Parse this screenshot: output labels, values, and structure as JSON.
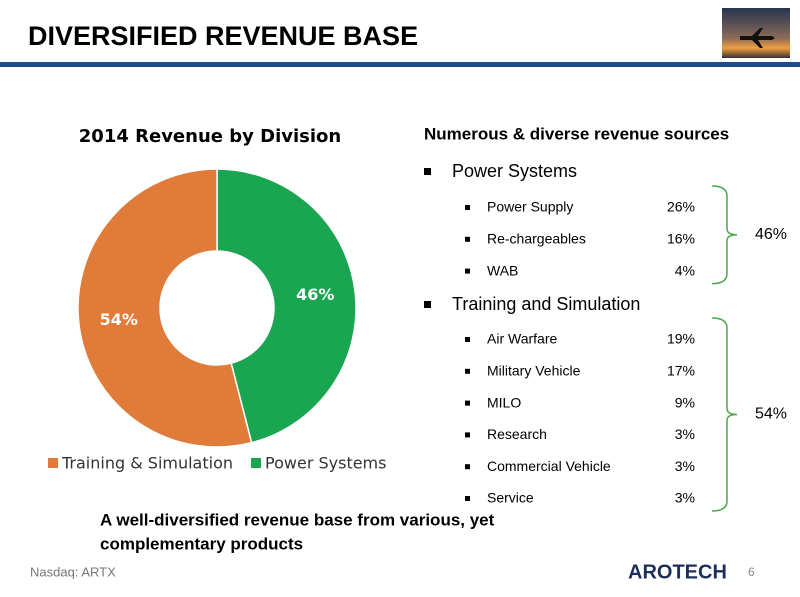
{
  "header": {
    "title": "DIVERSIFIED REVENUE BASE"
  },
  "chart_data": {
    "type": "pie",
    "title": "2014 Revenue by Division",
    "categories": [
      "Training & Simulation",
      "Power Systems"
    ],
    "values": [
      54,
      46
    ],
    "value_labels": [
      "54%",
      "46%"
    ],
    "colors": [
      "#e07b39",
      "#1aa550"
    ],
    "hole": true,
    "legend": "bottom"
  },
  "list": {
    "heading": "Numerous & diverse revenue sources",
    "groups": [
      {
        "name": "Power Systems",
        "total": "46%",
        "items": [
          {
            "name": "Power Supply",
            "share": "26%"
          },
          {
            "name": "Re-chargeables",
            "share": "16%"
          },
          {
            "name": "WAB",
            "share": "4%"
          }
        ]
      },
      {
        "name": "Training and Simulation",
        "total": "54%",
        "items": [
          {
            "name": "Air Warfare",
            "share": "19%"
          },
          {
            "name": "Military Vehicle",
            "share": "17%"
          },
          {
            "name": "MILO",
            "share": "9%"
          },
          {
            "name": "Research",
            "share": "3%"
          },
          {
            "name": "Commercial Vehicle",
            "share": "3%"
          },
          {
            "name": "Service",
            "share": "3%"
          }
        ]
      }
    ]
  },
  "summary": [
    "A well-diversified revenue base from various, yet",
    "complementary products"
  ],
  "footer": {
    "ticker": "Nasdaq: ARTX",
    "logo": "AROTECH",
    "page": "6"
  }
}
